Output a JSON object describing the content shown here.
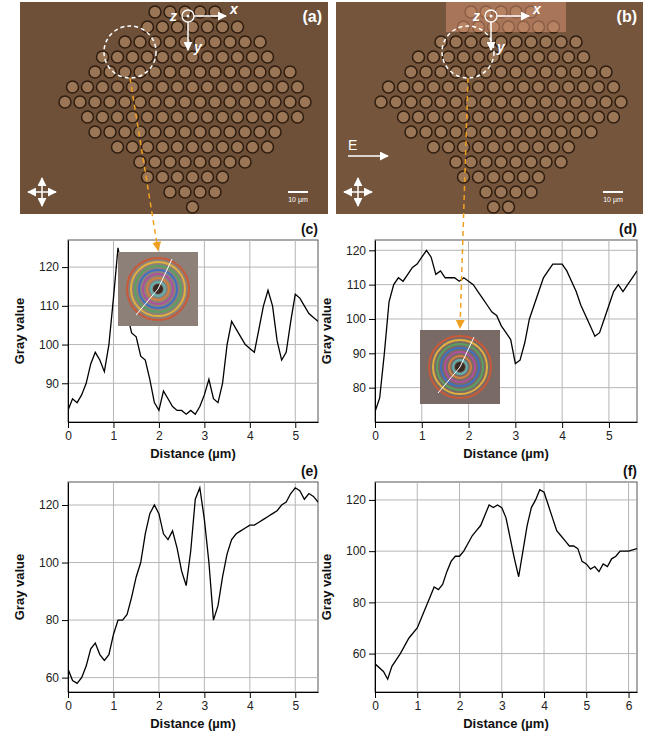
{
  "chart_data": [
    {
      "type": "line",
      "title": "(c)",
      "x_label": "Distance (µm)",
      "y_label": "Gray value",
      "color": "#000000",
      "grid": true,
      "xlim": [
        0,
        5.5
      ],
      "ylim": [
        80,
        127
      ],
      "xticks": [
        0,
        1,
        2,
        3,
        4,
        5
      ],
      "yticks": [
        90,
        100,
        110,
        120
      ],
      "x": [
        0,
        0.1,
        0.2,
        0.3,
        0.4,
        0.5,
        0.6,
        0.7,
        0.8,
        0.9,
        1.0,
        1.1,
        1.2,
        1.3,
        1.4,
        1.5,
        1.6,
        1.7,
        1.8,
        1.9,
        2.0,
        2.1,
        2.2,
        2.3,
        2.4,
        2.5,
        2.6,
        2.7,
        2.8,
        2.9,
        3.0,
        3.1,
        3.2,
        3.3,
        3.4,
        3.5,
        3.6,
        3.7,
        3.8,
        3.9,
        4.0,
        4.1,
        4.2,
        4.3,
        4.4,
        4.5,
        4.6,
        4.7,
        4.8,
        4.9,
        5.0,
        5.1,
        5.2,
        5.3,
        5.4,
        5.5
      ],
      "values": [
        83,
        86,
        85,
        87,
        90,
        95,
        98,
        96,
        93,
        100,
        112,
        125,
        118,
        108,
        103,
        102,
        97,
        96,
        91,
        85,
        83,
        88,
        86,
        84,
        83,
        83,
        82,
        83,
        82,
        84,
        87,
        91,
        86,
        85,
        90,
        100,
        106,
        104,
        102,
        100,
        99,
        98,
        104,
        110,
        114,
        110,
        101,
        96,
        98,
        106,
        113,
        112,
        110,
        108,
        107,
        106
      ]
    },
    {
      "type": "line",
      "title": "(d)",
      "x_label": "Distance (µm)",
      "y_label": "Gray value",
      "color": "#000000",
      "grid": true,
      "xlim": [
        0,
        5.6
      ],
      "ylim": [
        70,
        123
      ],
      "xticks": [
        0,
        1,
        2,
        3,
        4,
        5
      ],
      "yticks": [
        80,
        90,
        100,
        110,
        120
      ],
      "x": [
        0,
        0.1,
        0.2,
        0.3,
        0.4,
        0.5,
        0.6,
        0.7,
        0.8,
        0.9,
        1.0,
        1.1,
        1.2,
        1.3,
        1.4,
        1.5,
        1.6,
        1.7,
        1.8,
        1.9,
        2.0,
        2.1,
        2.2,
        2.3,
        2.4,
        2.5,
        2.6,
        2.7,
        2.8,
        2.9,
        3.0,
        3.1,
        3.2,
        3.3,
        3.4,
        3.5,
        3.6,
        3.7,
        3.8,
        3.9,
        4.0,
        4.1,
        4.2,
        4.3,
        4.4,
        4.5,
        4.6,
        4.7,
        4.8,
        4.9,
        5.0,
        5.1,
        5.2,
        5.3,
        5.4,
        5.5,
        5.6
      ],
      "values": [
        73,
        77,
        90,
        105,
        110,
        112,
        111,
        113,
        115,
        116,
        118,
        120,
        118,
        113,
        114,
        112,
        112,
        112,
        111,
        112,
        111,
        110,
        108,
        106,
        104,
        102,
        101,
        98,
        96,
        94,
        87,
        88,
        93,
        100,
        104,
        108,
        112,
        114,
        116,
        116,
        116,
        114,
        111,
        108,
        104,
        101,
        98,
        95,
        96,
        100,
        104,
        108,
        110,
        108,
        110,
        112,
        114
      ]
    },
    {
      "type": "line",
      "title": "(e)",
      "x_label": "Distance (µm)",
      "y_label": "Gray value",
      "color": "#000000",
      "grid": true,
      "xlim": [
        0,
        5.5
      ],
      "ylim": [
        55,
        128
      ],
      "xticks": [
        0,
        1,
        2,
        3,
        4,
        5
      ],
      "yticks": [
        60,
        80,
        100,
        120
      ],
      "x": [
        0,
        0.1,
        0.2,
        0.3,
        0.4,
        0.5,
        0.6,
        0.7,
        0.8,
        0.9,
        1.0,
        1.1,
        1.2,
        1.3,
        1.4,
        1.5,
        1.6,
        1.7,
        1.8,
        1.9,
        2.0,
        2.1,
        2.2,
        2.3,
        2.4,
        2.5,
        2.6,
        2.7,
        2.8,
        2.9,
        3.0,
        3.1,
        3.2,
        3.3,
        3.4,
        3.5,
        3.6,
        3.7,
        3.8,
        3.9,
        4.0,
        4.1,
        4.2,
        4.3,
        4.4,
        4.5,
        4.6,
        4.7,
        4.8,
        4.9,
        5.0,
        5.1,
        5.2,
        5.3,
        5.4,
        5.5
      ],
      "values": [
        63,
        59,
        58,
        60,
        64,
        70,
        72,
        68,
        66,
        68,
        75,
        80,
        80,
        82,
        88,
        95,
        100,
        110,
        117,
        120,
        117,
        110,
        108,
        111,
        105,
        97,
        92,
        104,
        122,
        126,
        115,
        100,
        80,
        85,
        95,
        103,
        108,
        110,
        111,
        112,
        113,
        113,
        114,
        115,
        116,
        117,
        118,
        120,
        121,
        124,
        126,
        125,
        122,
        124,
        123,
        121
      ]
    },
    {
      "type": "line",
      "title": "(f)",
      "x_label": "Distance (µm)",
      "y_label": "Gray value",
      "color": "#000000",
      "grid": true,
      "xlim": [
        0,
        6.2
      ],
      "ylim": [
        45,
        127
      ],
      "xticks": [
        0,
        1,
        2,
        3,
        4,
        5,
        6
      ],
      "yticks": [
        60,
        80,
        100,
        120
      ],
      "x": [
        0,
        0.2,
        0.3,
        0.4,
        0.6,
        0.8,
        1.0,
        1.1,
        1.2,
        1.3,
        1.4,
        1.5,
        1.6,
        1.7,
        1.8,
        1.9,
        2.0,
        2.1,
        2.2,
        2.3,
        2.4,
        2.5,
        2.6,
        2.7,
        2.8,
        2.9,
        3.0,
        3.1,
        3.2,
        3.3,
        3.4,
        3.5,
        3.6,
        3.7,
        3.8,
        3.9,
        4.0,
        4.1,
        4.2,
        4.3,
        4.4,
        4.5,
        4.6,
        4.7,
        4.8,
        4.9,
        5.0,
        5.1,
        5.2,
        5.3,
        5.4,
        5.5,
        5.6,
        5.7,
        5.8,
        5.9,
        6.0,
        6.2
      ],
      "values": [
        56,
        53,
        50,
        55,
        60,
        66,
        70,
        74,
        78,
        82,
        86,
        85,
        87,
        92,
        96,
        98,
        98,
        100,
        103,
        106,
        108,
        110,
        114,
        118,
        117,
        118,
        117,
        113,
        105,
        97,
        90,
        100,
        110,
        117,
        120,
        124,
        123,
        118,
        113,
        108,
        106,
        104,
        102,
        102,
        101,
        96,
        95,
        93,
        94,
        92,
        95,
        94,
        97,
        98,
        100,
        100,
        100,
        101
      ]
    }
  ],
  "images": [
    {
      "label": "(a)",
      "axis_labels": [
        "z",
        "x",
        "y"
      ],
      "scale_bar": "10 µm"
    },
    {
      "label": "(b)",
      "axis_labels": [
        "z",
        "x",
        "y"
      ],
      "field_label": "E",
      "scale_bar": "10 µm"
    }
  ]
}
